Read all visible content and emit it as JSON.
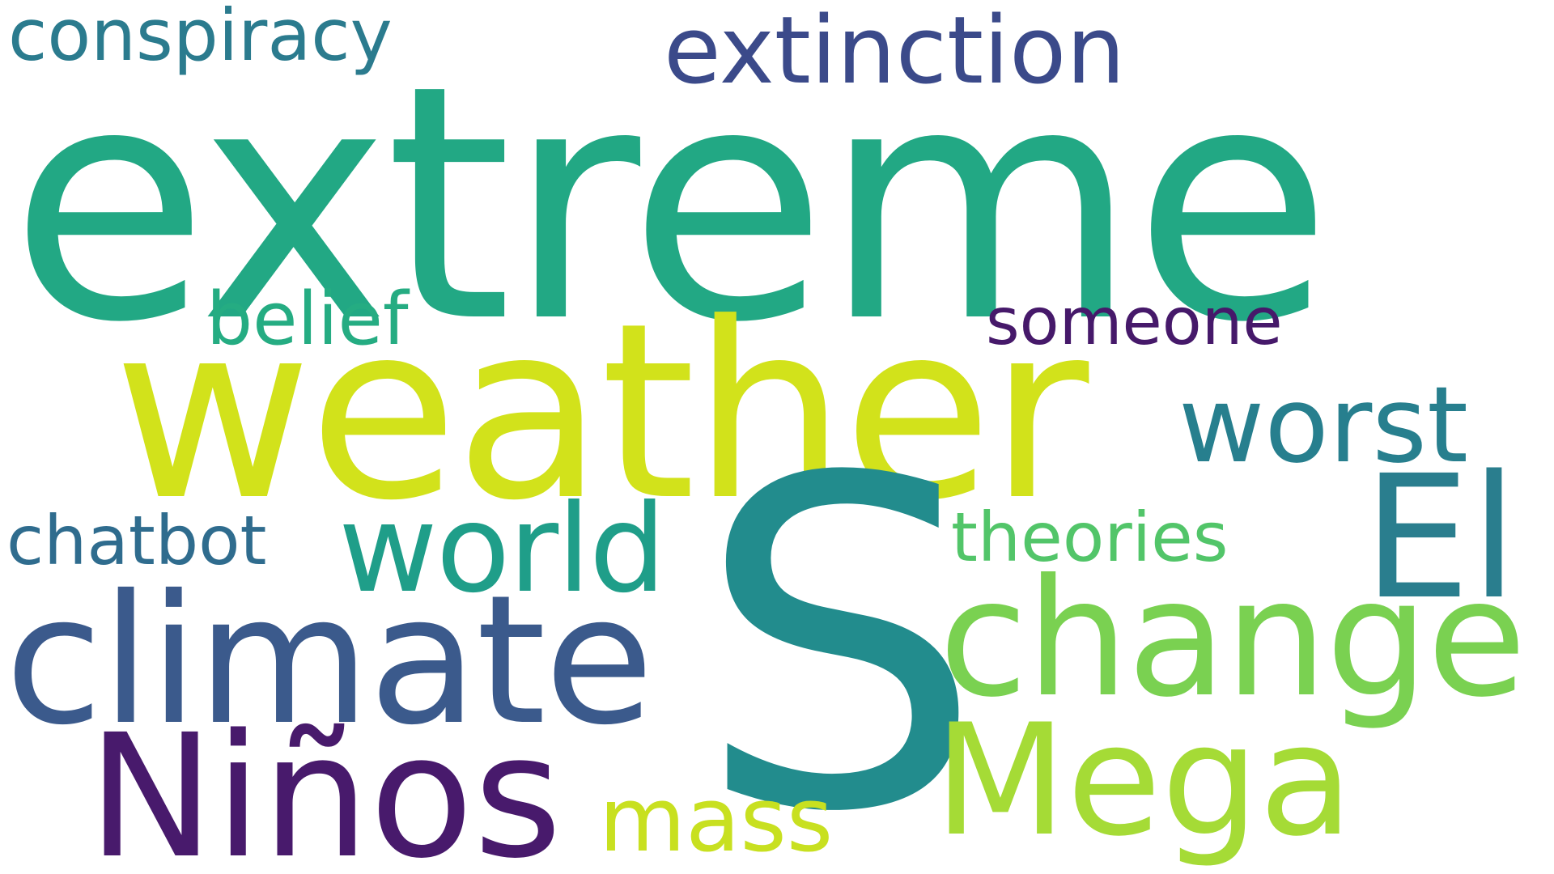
{
  "wordcloud": {
    "words": [
      {
        "id": "extreme",
        "text": "extreme",
        "color": "#22a884"
      },
      {
        "id": "weather",
        "text": "weather",
        "color": "#d2e21b"
      },
      {
        "id": "s",
        "text": "S",
        "color": "#228c8d"
      },
      {
        "id": "climate",
        "text": "climate",
        "color": "#3b5a8c"
      },
      {
        "id": "change",
        "text": "change",
        "color": "#7ad151"
      },
      {
        "id": "el",
        "text": "El",
        "color": "#2a7e8e"
      },
      {
        "id": "mega",
        "text": "Mega",
        "color": "#a5db36"
      },
      {
        "id": "ninos",
        "text": "Niños",
        "color": "#481a6c"
      },
      {
        "id": "mass",
        "text": "mass",
        "color": "#c8e020"
      },
      {
        "id": "world",
        "text": "world",
        "color": "#1f9e89"
      },
      {
        "id": "worst",
        "text": "worst",
        "color": "#277f8e"
      },
      {
        "id": "extinction",
        "text": "extinction",
        "color": "#3b4a8a"
      },
      {
        "id": "conspiracy",
        "text": "conspiracy",
        "color": "#2b7b8e"
      },
      {
        "id": "belief",
        "text": "belief",
        "color": "#25ac82"
      },
      {
        "id": "someone",
        "text": "someone",
        "color": "#46196a"
      },
      {
        "id": "theories",
        "text": "theories",
        "color": "#52c569"
      },
      {
        "id": "chatbot",
        "text": "chatbot",
        "color": "#2f6c8e"
      }
    ]
  }
}
